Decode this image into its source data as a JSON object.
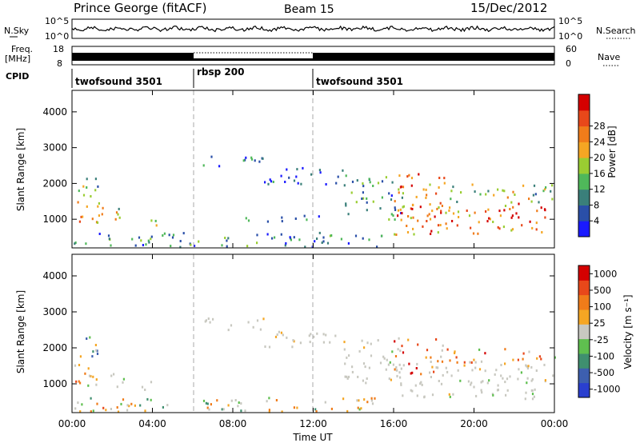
{
  "header": {
    "station": "Prince George (fitACF)",
    "beam": "Beam 15",
    "date": "15/Dec/2012"
  },
  "status_panels": {
    "nsky_label": "N.Sky",
    "nsearch_label": "N.Search",
    "noise_ticks": [
      "10^5",
      "10^0"
    ],
    "freq_label_top": "Freq.",
    "freq_label_units": "[MHz]",
    "freq_ticks": [
      "18",
      "8"
    ],
    "nave_label": "Nave",
    "nave_ticks": [
      "60",
      "0"
    ],
    "cpid_label": "CPID"
  },
  "cpid_segments": [
    {
      "name": "twofsound 3501",
      "start_hr": 0,
      "end_hr": 6
    },
    {
      "name": "rbsp 200",
      "start_hr": 6,
      "end_hr": 12
    },
    {
      "name": "twofsound 3501",
      "start_hr": 12,
      "end_hr": 24
    }
  ],
  "colors": {
    "power_scale": [
      "#1a1aff",
      "#2a4fa8",
      "#3a7f7a",
      "#4fb85a",
      "#9acd32",
      "#f5a623",
      "#f07c1a",
      "#e8481a",
      "#d40000"
    ],
    "velocity_scale": [
      "#2a3fcf",
      "#3d5faf",
      "#3f8f6f",
      "#5fbf4f",
      "#c8c8c0",
      "#f5a623",
      "#f07c1a",
      "#e8481a",
      "#d40000"
    ]
  },
  "chart_data": [
    {
      "type": "heatmap",
      "title": "",
      "xlabel": "Time UT",
      "ylabel": "Slant Range [km]",
      "xlim": [
        0,
        24
      ],
      "ylim": [
        200,
        4600
      ],
      "x_ticks": [
        "00:00",
        "04:00",
        "08:00",
        "12:00",
        "16:00",
        "20:00",
        "00:00"
      ],
      "y_ticks": [
        1000,
        2000,
        3000,
        4000
      ],
      "colorbar_label": "Power [dB]",
      "colorbar_ticks": [
        "4",
        "8",
        "12",
        "16",
        "20",
        "24",
        "28"
      ],
      "colorbar_range": [
        0,
        30
      ],
      "echo_regions": [
        {
          "t0": 0.0,
          "t1": 1.5,
          "r0": 800,
          "r1": 1600,
          "level": 0.65
        },
        {
          "t0": 0.3,
          "t1": 1.3,
          "r0": 1600,
          "r1": 2400,
          "level": 0.45
        },
        {
          "t0": 1.8,
          "t1": 2.6,
          "r0": 900,
          "r1": 1500,
          "level": 0.55
        },
        {
          "t0": 3.4,
          "t1": 4.2,
          "r0": 800,
          "r1": 1100,
          "level": 0.6
        },
        {
          "t0": 0.0,
          "t1": 15.5,
          "r0": 250,
          "r1": 650,
          "level": 0.25
        },
        {
          "t0": 6.5,
          "t1": 9.5,
          "r0": 2500,
          "r1": 2850,
          "level": 0.2
        },
        {
          "t0": 9.5,
          "t1": 13.5,
          "r0": 2000,
          "r1": 2500,
          "level": 0.15
        },
        {
          "t0": 8.5,
          "t1": 12.5,
          "r0": 950,
          "r1": 1150,
          "level": 0.2
        },
        {
          "t0": 13.5,
          "t1": 16.5,
          "r0": 1000,
          "r1": 2300,
          "level": 0.35
        },
        {
          "t0": 16.0,
          "t1": 18.5,
          "r0": 1200,
          "r1": 2300,
          "level": 0.7
        },
        {
          "t0": 16.0,
          "t1": 24.0,
          "r0": 600,
          "r1": 1500,
          "level": 0.75
        },
        {
          "t0": 18.5,
          "t1": 24.0,
          "r0": 1500,
          "r1": 2000,
          "level": 0.45
        }
      ]
    },
    {
      "type": "heatmap",
      "title": "",
      "xlabel": "Time UT",
      "ylabel": "Slant Range [km]",
      "xlim": [
        0,
        24
      ],
      "ylim": [
        200,
        4600
      ],
      "x_ticks": [
        "00:00",
        "04:00",
        "08:00",
        "12:00",
        "16:00",
        "20:00",
        "00:00"
      ],
      "y_ticks": [
        1000,
        2000,
        3000,
        4000
      ],
      "colorbar_label": "Velocity [m s⁻¹]",
      "colorbar_ticks": [
        "1000",
        "500",
        "100",
        "25",
        "-25",
        "-100",
        "-500",
        "-1000"
      ],
      "colorbar_range": [
        -1000,
        1000
      ],
      "echo_regions": [
        {
          "t0": 0.0,
          "t1": 1.5,
          "r0": 800,
          "r1": 1600,
          "level": 0.6
        },
        {
          "t0": 0.3,
          "t1": 1.3,
          "r0": 1600,
          "r1": 2400,
          "level": 0.4
        },
        {
          "t0": 1.8,
          "t1": 2.6,
          "r0": 900,
          "r1": 1500,
          "level": 0.5
        },
        {
          "t0": 3.4,
          "t1": 4.2,
          "r0": 800,
          "r1": 1100,
          "level": 0.6
        },
        {
          "t0": 0.0,
          "t1": 15.5,
          "r0": 250,
          "r1": 650,
          "level": 0.55
        },
        {
          "t0": 6.5,
          "t1": 9.5,
          "r0": 2500,
          "r1": 2850,
          "level": 0.5
        },
        {
          "t0": 9.5,
          "t1": 13.5,
          "r0": 2000,
          "r1": 2500,
          "level": 0.5
        },
        {
          "t0": 13.5,
          "t1": 16.5,
          "r0": 1000,
          "r1": 2300,
          "level": 0.5
        },
        {
          "t0": 16.0,
          "t1": 18.5,
          "r0": 1300,
          "r1": 2300,
          "level": 0.72
        },
        {
          "t0": 16.0,
          "t1": 24.0,
          "r0": 600,
          "r1": 1500,
          "level": 0.5
        },
        {
          "t0": 18.5,
          "t1": 24.0,
          "r0": 1500,
          "r1": 2000,
          "level": 0.65
        }
      ]
    }
  ]
}
